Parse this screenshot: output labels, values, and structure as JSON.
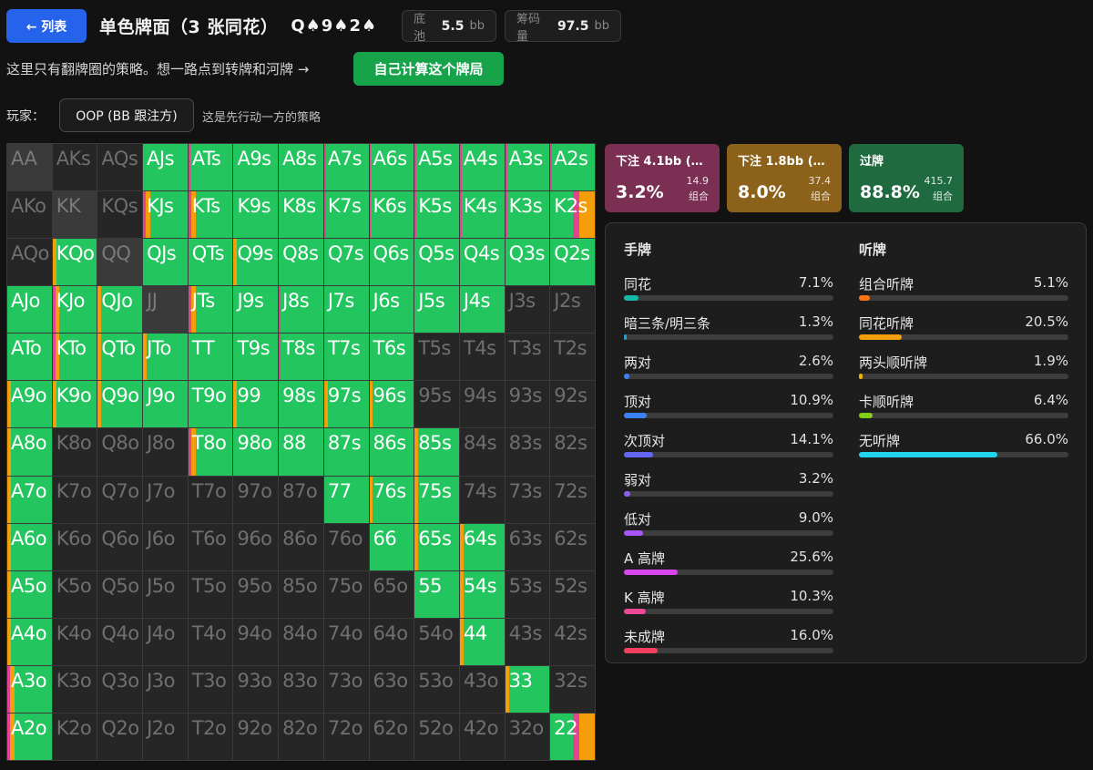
{
  "header": {
    "back_label": "← 列表",
    "title": "单色牌面（3 张同花）",
    "board": "Q♠9♠2♠",
    "pot_label": "底池",
    "pot_value": "5.5",
    "pot_unit": "bb",
    "stack_label": "筹码量",
    "stack_value": "97.5",
    "stack_unit": "bb"
  },
  "info": {
    "hint": "这里只有翻牌圈的策略。想一路点到转牌和河牌 →",
    "calc_button": "自己计算这个牌局"
  },
  "player": {
    "label": "玩家：",
    "selected": "OOP (BB 跟注方)",
    "note": "这是先行动一方的策略"
  },
  "colors": {
    "bet_large": "#e0458f",
    "bet_small": "#f59e0b",
    "check": "#22c55e",
    "empty": "#2a2a2a",
    "blocked": "#3a3a3a"
  },
  "grid": {
    "rows": [
      [
        [
          "AA",
          "x"
        ],
        [
          "AKs",
          "e"
        ],
        [
          "AQs",
          "e"
        ],
        [
          "AJs",
          "c"
        ],
        [
          "ATs",
          "pc"
        ],
        [
          "A9s",
          "c"
        ],
        [
          "A8s",
          "c"
        ],
        [
          "A7s",
          "pc"
        ],
        [
          "A6s",
          "pc"
        ],
        [
          "A5s",
          "pc"
        ],
        [
          "A4s",
          "pc"
        ],
        [
          "A3s",
          "pc"
        ],
        [
          "A2s",
          "pc"
        ]
      ],
      [
        [
          "AKo",
          "e"
        ],
        [
          "KK",
          "x"
        ],
        [
          "KQs",
          "e"
        ],
        [
          "KJs",
          "pbc"
        ],
        [
          "KTs",
          "pbc"
        ],
        [
          "K9s",
          "c"
        ],
        [
          "K8s",
          "c"
        ],
        [
          "K7s",
          "pc"
        ],
        [
          "K6s",
          "pc"
        ],
        [
          "K5s",
          "pc"
        ],
        [
          "K4s",
          "pc"
        ],
        [
          "K3s",
          "pc"
        ],
        [
          "K2s",
          "pbb"
        ]
      ],
      [
        [
          "AQo",
          "e"
        ],
        [
          "KQo",
          "bc"
        ],
        [
          "QQ",
          "x"
        ],
        [
          "QJs",
          "c"
        ],
        [
          "QTs",
          "c"
        ],
        [
          "Q9s",
          "bc"
        ],
        [
          "Q8s",
          "c"
        ],
        [
          "Q7s",
          "c"
        ],
        [
          "Q6s",
          "c"
        ],
        [
          "Q5s",
          "c"
        ],
        [
          "Q4s",
          "c"
        ],
        [
          "Q3s",
          "c"
        ],
        [
          "Q2s",
          "c"
        ]
      ],
      [
        [
          "AJo",
          "c"
        ],
        [
          "KJo",
          "pbc"
        ],
        [
          "QJo",
          "bc"
        ],
        [
          "JJ",
          "x"
        ],
        [
          "JTs",
          "pbc"
        ],
        [
          "J9s",
          "c"
        ],
        [
          "J8s",
          "pc"
        ],
        [
          "J7s",
          "c"
        ],
        [
          "J6s",
          "c"
        ],
        [
          "J5s",
          "c"
        ],
        [
          "J4s",
          "c"
        ],
        [
          "J3s",
          "e"
        ],
        [
          "J2s",
          "e"
        ]
      ],
      [
        [
          "ATo",
          "c"
        ],
        [
          "KTo",
          "pbc"
        ],
        [
          "QTo",
          "bc"
        ],
        [
          "JTo",
          "bc"
        ],
        [
          "TT",
          "c"
        ],
        [
          "T9s",
          "c"
        ],
        [
          "T8s",
          "pc"
        ],
        [
          "T7s",
          "c"
        ],
        [
          "T6s",
          "c"
        ],
        [
          "T5s",
          "e"
        ],
        [
          "T4s",
          "e"
        ],
        [
          "T3s",
          "e"
        ],
        [
          "T2s",
          "e"
        ]
      ],
      [
        [
          "A9o",
          "bc"
        ],
        [
          "K9o",
          "bc"
        ],
        [
          "Q9o",
          "bc"
        ],
        [
          "J9o",
          "c"
        ],
        [
          "T9o",
          "c"
        ],
        [
          "99",
          "bc"
        ],
        [
          "98s",
          "c"
        ],
        [
          "97s",
          "bc"
        ],
        [
          "96s",
          "bc"
        ],
        [
          "95s",
          "e"
        ],
        [
          "94s",
          "e"
        ],
        [
          "93s",
          "e"
        ],
        [
          "92s",
          "e"
        ]
      ],
      [
        [
          "A8o",
          "bc"
        ],
        [
          "K8o",
          "e"
        ],
        [
          "Q8o",
          "e"
        ],
        [
          "J8o",
          "e"
        ],
        [
          "T8o",
          "pbc"
        ],
        [
          "98o",
          "c"
        ],
        [
          "88",
          "c"
        ],
        [
          "87s",
          "c"
        ],
        [
          "86s",
          "c"
        ],
        [
          "85s",
          "bc"
        ],
        [
          "84s",
          "e"
        ],
        [
          "83s",
          "e"
        ],
        [
          "82s",
          "e"
        ]
      ],
      [
        [
          "A7o",
          "bc"
        ],
        [
          "K7o",
          "e"
        ],
        [
          "Q7o",
          "e"
        ],
        [
          "J7o",
          "e"
        ],
        [
          "T7o",
          "e"
        ],
        [
          "97o",
          "e"
        ],
        [
          "87o",
          "e"
        ],
        [
          "77",
          "c"
        ],
        [
          "76s",
          "bc"
        ],
        [
          "75s",
          "bc"
        ],
        [
          "74s",
          "e"
        ],
        [
          "73s",
          "e"
        ],
        [
          "72s",
          "e"
        ]
      ],
      [
        [
          "A6o",
          "bc"
        ],
        [
          "K6o",
          "e"
        ],
        [
          "Q6o",
          "e"
        ],
        [
          "J6o",
          "e"
        ],
        [
          "T6o",
          "e"
        ],
        [
          "96o",
          "e"
        ],
        [
          "86o",
          "e"
        ],
        [
          "76o",
          "e"
        ],
        [
          "66",
          "c"
        ],
        [
          "65s",
          "bc"
        ],
        [
          "64s",
          "bc"
        ],
        [
          "63s",
          "e"
        ],
        [
          "62s",
          "e"
        ]
      ],
      [
        [
          "A5o",
          "bc"
        ],
        [
          "K5o",
          "e"
        ],
        [
          "Q5o",
          "e"
        ],
        [
          "J5o",
          "e"
        ],
        [
          "T5o",
          "e"
        ],
        [
          "95o",
          "e"
        ],
        [
          "85o",
          "e"
        ],
        [
          "75o",
          "e"
        ],
        [
          "65o",
          "e"
        ],
        [
          "55",
          "c"
        ],
        [
          "54s",
          "bc"
        ],
        [
          "53s",
          "e"
        ],
        [
          "52s",
          "e"
        ]
      ],
      [
        [
          "A4o",
          "bc"
        ],
        [
          "K4o",
          "e"
        ],
        [
          "Q4o",
          "e"
        ],
        [
          "J4o",
          "e"
        ],
        [
          "T4o",
          "e"
        ],
        [
          "94o",
          "e"
        ],
        [
          "84o",
          "e"
        ],
        [
          "74o",
          "e"
        ],
        [
          "64o",
          "e"
        ],
        [
          "54o",
          "e"
        ],
        [
          "44",
          "bc"
        ],
        [
          "43s",
          "e"
        ],
        [
          "42s",
          "e"
        ]
      ],
      [
        [
          "A3o",
          "pbc"
        ],
        [
          "K3o",
          "e"
        ],
        [
          "Q3o",
          "e"
        ],
        [
          "J3o",
          "e"
        ],
        [
          "T3o",
          "e"
        ],
        [
          "93o",
          "e"
        ],
        [
          "83o",
          "e"
        ],
        [
          "73o",
          "e"
        ],
        [
          "63o",
          "e"
        ],
        [
          "53o",
          "e"
        ],
        [
          "43o",
          "e"
        ],
        [
          "33",
          "bc"
        ],
        [
          "32s",
          "e"
        ]
      ],
      [
        [
          "A2o",
          "pbc"
        ],
        [
          "K2o",
          "e"
        ],
        [
          "Q2o",
          "e"
        ],
        [
          "J2o",
          "e"
        ],
        [
          "T2o",
          "e"
        ],
        [
          "92o",
          "e"
        ],
        [
          "82o",
          "e"
        ],
        [
          "72o",
          "e"
        ],
        [
          "62o",
          "e"
        ],
        [
          "52o",
          "e"
        ],
        [
          "42o",
          "e"
        ],
        [
          "32o",
          "e"
        ],
        [
          "22",
          "pbb"
        ]
      ]
    ]
  },
  "actions": [
    {
      "name": "下注 4.1bb (…",
      "pct": "3.2%",
      "combo_value": "14.9",
      "combo_label": "组合"
    },
    {
      "name": "下注 1.8bb (…",
      "pct": "8.0%",
      "combo_value": "37.4",
      "combo_label": "组合"
    },
    {
      "name": "过牌",
      "pct": "88.8%",
      "combo_value": "415.7",
      "combo_label": "组合"
    }
  ],
  "stats": {
    "hands_title": "手牌",
    "hands": [
      {
        "name": "同花",
        "value": "7.1%",
        "pct": 7.1,
        "color": "#14b8a6"
      },
      {
        "name": "暗三条/明三条",
        "value": "1.3%",
        "pct": 1.3,
        "color": "#0ea5e9"
      },
      {
        "name": "两对",
        "value": "2.6%",
        "pct": 2.6,
        "color": "#3b82f6"
      },
      {
        "name": "顶对",
        "value": "10.9%",
        "pct": 10.9,
        "color": "#3b82f6"
      },
      {
        "name": "次顶对",
        "value": "14.1%",
        "pct": 14.1,
        "color": "#6366f1"
      },
      {
        "name": "弱对",
        "value": "3.2%",
        "pct": 3.2,
        "color": "#8b5cf6"
      },
      {
        "name": "低对",
        "value": "9.0%",
        "pct": 9.0,
        "color": "#a855f7"
      },
      {
        "name": "A 高牌",
        "value": "25.6%",
        "pct": 25.6,
        "color": "#d946ef"
      },
      {
        "name": "K 高牌",
        "value": "10.3%",
        "pct": 10.3,
        "color": "#ec4899"
      },
      {
        "name": "未成牌",
        "value": "16.0%",
        "pct": 16.0,
        "color": "#f43f5e"
      }
    ],
    "draws_title": "听牌",
    "draws": [
      {
        "name": "组合听牌",
        "value": "5.1%",
        "pct": 5.1,
        "color": "#f97316"
      },
      {
        "name": "同花听牌",
        "value": "20.5%",
        "pct": 20.5,
        "color": "#f59e0b"
      },
      {
        "name": "两头顺听牌",
        "value": "1.9%",
        "pct": 1.9,
        "color": "#eab308"
      },
      {
        "name": "卡顺听牌",
        "value": "6.4%",
        "pct": 6.4,
        "color": "#84cc16"
      },
      {
        "name": "无听牌",
        "value": "66.0%",
        "pct": 66.0,
        "color": "#22d3ee"
      }
    ]
  }
}
